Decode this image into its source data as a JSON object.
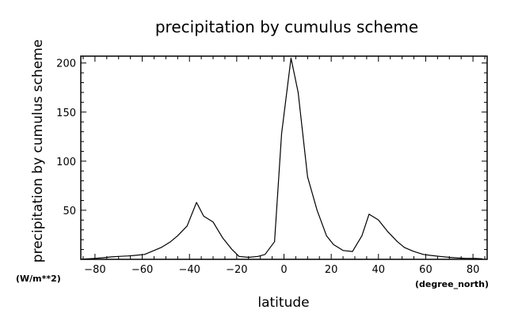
{
  "chart_data": {
    "type": "line",
    "title": "precipitation by cumulus scheme",
    "xlabel": "latitude",
    "ylabel": "precipitation by cumulus scheme",
    "x_unit": "(degree_north)",
    "y_unit": "(W/m**2)",
    "xlim": [
      -86,
      86
    ],
    "ylim": [
      0,
      207
    ],
    "x_ticks": [
      -80,
      -60,
      -40,
      -20,
      0,
      20,
      40,
      60,
      80
    ],
    "y_ticks": [
      50,
      100,
      150,
      200
    ],
    "grid": false,
    "series": [
      {
        "x": [
          -86,
          -83,
          -80,
          -77,
          -73,
          -70,
          -66,
          -63,
          -59,
          -56,
          -52,
          -48,
          -45,
          -41,
          -37,
          -34,
          -30,
          -26,
          -22,
          -19,
          -15,
          -11,
          -8,
          -4,
          -1,
          3,
          6,
          10,
          14,
          18,
          21,
          25,
          29,
          33,
          36,
          40,
          44,
          48,
          51,
          55,
          59,
          62,
          66,
          70,
          73,
          77,
          81,
          84
        ],
        "values": [
          0,
          0.5,
          1,
          1.5,
          2.5,
          3,
          3.5,
          4,
          5,
          8,
          12,
          18,
          24,
          34,
          58,
          44,
          38,
          22,
          10,
          3,
          2,
          3,
          5,
          18,
          128,
          205,
          170,
          84,
          50,
          24,
          15,
          9,
          8,
          24,
          46,
          40,
          28,
          18,
          12,
          8,
          5,
          4,
          3,
          2,
          1.5,
          1,
          1,
          0.5
        ]
      }
    ]
  }
}
